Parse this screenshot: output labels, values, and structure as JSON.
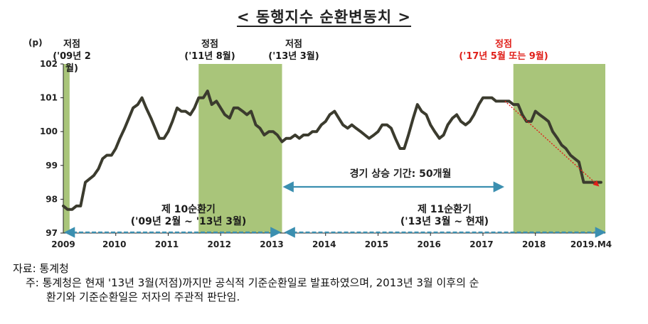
{
  "title": "< 동행지수 순환변동치 >",
  "y_unit": "(p)",
  "annotations": {
    "trough_2009": {
      "label": "저점",
      "date": "('09년 2월)"
    },
    "peak_2011": {
      "label": "정점",
      "date": "('11년 8월)"
    },
    "trough_2013": {
      "label": "저점",
      "date": "('13년 3월)"
    },
    "peak_2017": {
      "label": "정점",
      "date": "('17년 5월 또는 9월)"
    },
    "cycle10": {
      "name": "제 10순환기",
      "range": "('09년 2월 ~ '13년 3월)"
    },
    "cycle11": {
      "name": "제 11순환기",
      "range": "('13년 3월 ~ 현재)"
    },
    "expansion": "경기 상승 기간: 50개월"
  },
  "notes": {
    "source": "자료: 통계청",
    "note_line1": "주: 통계청은 현재 '13년 3월(저점)까지만 공식적 기준순환일로 발표하였으며, 2013년 3월 이후의 순",
    "note_line2": "환기와 기준순환일은 저자의 주관적 판단임."
  },
  "colors": {
    "line": "#3b3b2e",
    "shade": "#a9c57a",
    "arrow": "#3b8fb0",
    "trend": "#e0201a"
  },
  "chart_data": {
    "type": "line",
    "x_tick_labels": [
      "2009",
      "2010",
      "2011",
      "2012",
      "2013",
      "2014",
      "2015",
      "2016",
      "2017",
      "2018",
      "2019.M4"
    ],
    "x_range": [
      2009.0,
      2019.333
    ],
    "ylim": [
      97,
      102
    ],
    "y_ticks": [
      97,
      98,
      99,
      100,
      101,
      102
    ],
    "shaded_periods": [
      [
        2009.0,
        2009.12
      ],
      [
        2011.58,
        2013.17
      ],
      [
        2017.58,
        2019.333
      ]
    ],
    "series": [
      {
        "x": [
          2009.0,
          2009.08,
          2009.17,
          2009.25,
          2009.33,
          2009.42,
          2009.5,
          2009.58,
          2009.67,
          2009.75,
          2009.83,
          2009.92,
          2010.0,
          2010.08,
          2010.17,
          2010.25,
          2010.33,
          2010.42,
          2010.5,
          2010.58,
          2010.67,
          2010.75,
          2010.83,
          2010.92,
          2011.0,
          2011.08,
          2011.17,
          2011.25,
          2011.33,
          2011.42,
          2011.5,
          2011.58,
          2011.67,
          2011.75,
          2011.83,
          2011.92,
          2012.0,
          2012.08,
          2012.17,
          2012.25,
          2012.33,
          2012.42,
          2012.5,
          2012.58,
          2012.67,
          2012.75,
          2012.83,
          2012.92,
          2013.0,
          2013.08,
          2013.17,
          2013.25,
          2013.33,
          2013.42,
          2013.5,
          2013.58,
          2013.67,
          2013.75,
          2013.83,
          2013.92,
          2014.0,
          2014.08,
          2014.17,
          2014.25,
          2014.33,
          2014.42,
          2014.5,
          2014.58,
          2014.67,
          2014.75,
          2014.83,
          2014.92,
          2015.0,
          2015.08,
          2015.17,
          2015.25,
          2015.33,
          2015.42,
          2015.5,
          2015.58,
          2015.67,
          2015.75,
          2015.83,
          2015.92,
          2016.0,
          2016.08,
          2016.17,
          2016.25,
          2016.33,
          2016.42,
          2016.5,
          2016.58,
          2016.67,
          2016.75,
          2016.83,
          2016.92,
          2017.0,
          2017.08,
          2017.17,
          2017.25,
          2017.33,
          2017.42,
          2017.5,
          2017.58,
          2017.67,
          2017.75,
          2017.83,
          2017.92,
          2018.0,
          2018.08,
          2018.17,
          2018.25,
          2018.33,
          2018.42,
          2018.5,
          2018.58,
          2018.67,
          2018.75,
          2018.83,
          2018.92,
          2019.0,
          2019.08,
          2019.17,
          2019.25
        ],
        "values": [
          97.8,
          97.7,
          97.7,
          97.8,
          97.8,
          98.5,
          98.6,
          98.7,
          98.9,
          99.2,
          99.3,
          99.3,
          99.5,
          99.8,
          100.1,
          100.4,
          100.7,
          100.8,
          101.0,
          100.7,
          100.4,
          100.1,
          99.8,
          99.8,
          100.0,
          100.3,
          100.7,
          100.6,
          100.6,
          100.5,
          100.7,
          101.0,
          101.0,
          101.2,
          100.8,
          100.9,
          100.7,
          100.5,
          100.4,
          100.7,
          100.7,
          100.6,
          100.5,
          100.6,
          100.2,
          100.1,
          99.9,
          100.0,
          100.0,
          99.9,
          99.7,
          99.8,
          99.8,
          99.9,
          99.8,
          99.9,
          99.9,
          100.0,
          100.0,
          100.2,
          100.3,
          100.5,
          100.6,
          100.4,
          100.2,
          100.1,
          100.2,
          100.1,
          100.0,
          99.9,
          99.8,
          99.9,
          100.0,
          100.2,
          100.2,
          100.1,
          99.8,
          99.5,
          99.5,
          99.9,
          100.4,
          100.8,
          100.6,
          100.5,
          100.2,
          100.0,
          99.8,
          99.9,
          100.2,
          100.4,
          100.5,
          100.3,
          100.2,
          100.3,
          100.5,
          100.8,
          101.0,
          101.0,
          101.0,
          100.9,
          100.9,
          100.9,
          100.9,
          100.8,
          100.8,
          100.5,
          100.3,
          100.3,
          100.6,
          100.5,
          100.4,
          100.3,
          100.0,
          99.8,
          99.6,
          99.5,
          99.3,
          99.2,
          99.1,
          98.5,
          98.5,
          98.5,
          98.5,
          98.5
        ]
      }
    ],
    "trend_line": {
      "from": [
        2017.42,
        100.9
      ],
      "to": [
        2019.2,
        98.4
      ]
    }
  }
}
